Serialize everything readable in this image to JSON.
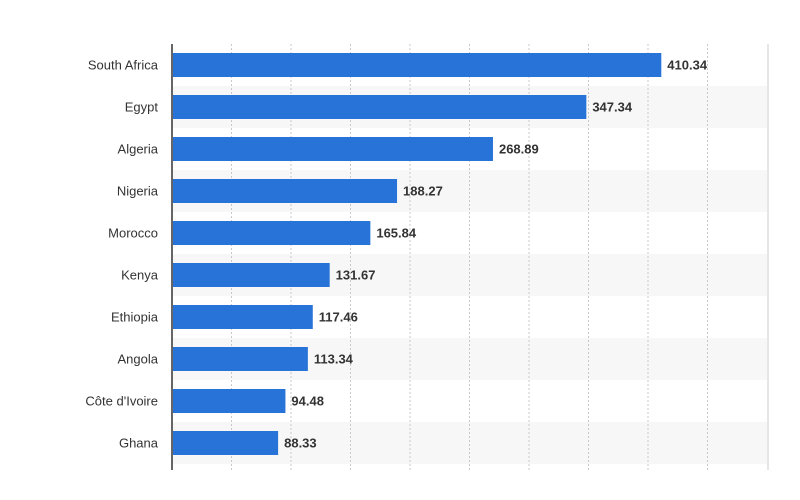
{
  "chart_data": {
    "type": "bar",
    "orientation": "horizontal",
    "categories": [
      "South Africa",
      "Egypt",
      "Algeria",
      "Nigeria",
      "Morocco",
      "Kenya",
      "Ethiopia",
      "Angola",
      "Côte d'Ivoire",
      "Ghana"
    ],
    "values": [
      410.34,
      347.34,
      268.89,
      188.27,
      165.84,
      131.67,
      117.46,
      113.34,
      94.48,
      88.33
    ],
    "value_labels": [
      "410.34",
      "347.34",
      "268.89",
      "188.27",
      "165.84",
      "131.67",
      "117.46",
      "113.34",
      "94.48",
      "88.33"
    ],
    "title": "",
    "xlabel": "",
    "ylabel": "",
    "xlim": [
      0,
      500
    ],
    "grid": true,
    "legend": "none",
    "bar_color": "#2873d8"
  }
}
